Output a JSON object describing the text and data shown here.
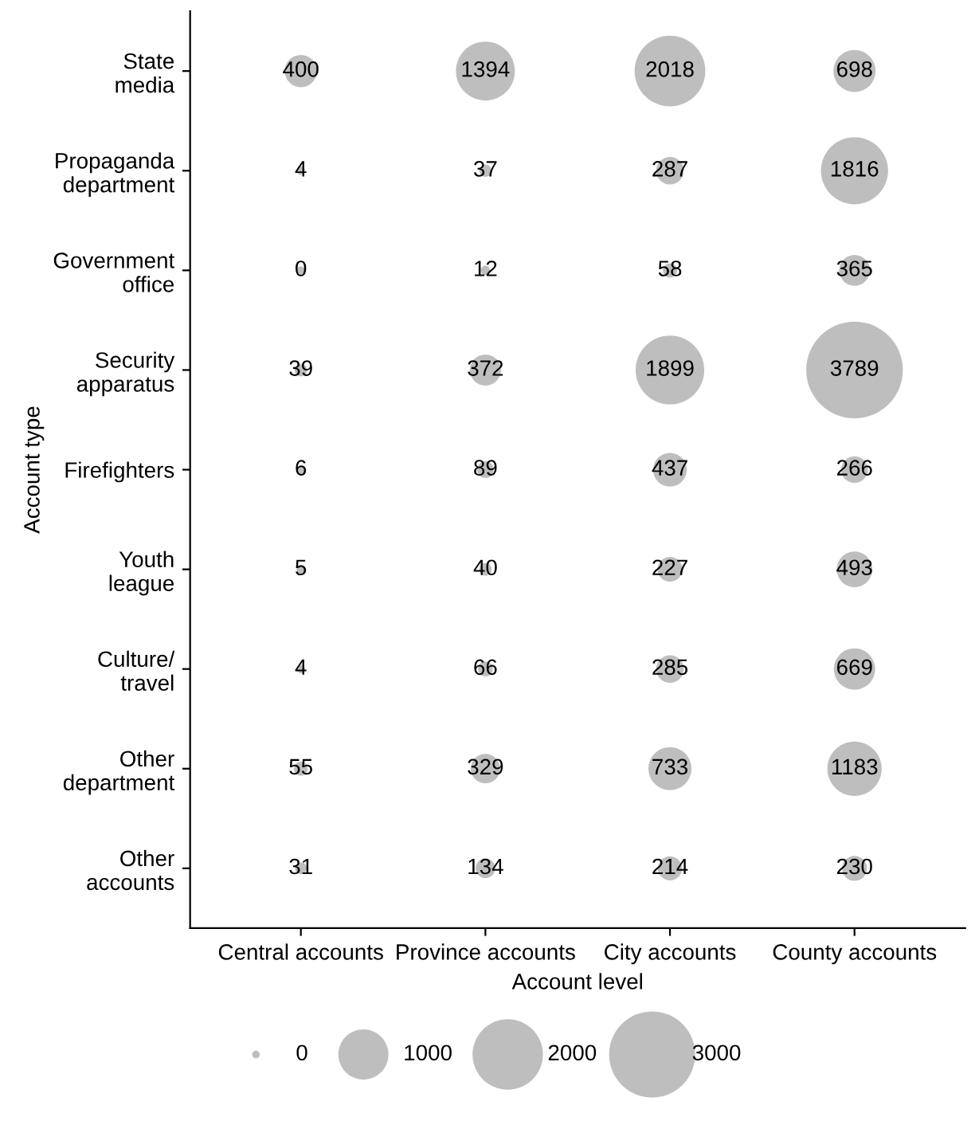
{
  "chart_data": {
    "type": "heatmap",
    "xlabel": "Account level",
    "ylabel": "Account type",
    "categories": [
      "Central accounts",
      "Province accounts",
      "City accounts",
      "County accounts"
    ],
    "y_categories": [
      "State\nmedia",
      "Propaganda\ndepartment",
      "Government\noffice",
      "Security\napparatus",
      "Firefighters",
      "Youth\nleague",
      "Culture/\ntravel",
      "Other\ndepartment",
      "Other\naccounts"
    ],
    "cells": [
      [
        400,
        1394,
        2018,
        698
      ],
      [
        4,
        37,
        287,
        1816
      ],
      [
        0,
        12,
        58,
        365
      ],
      [
        39,
        372,
        1899,
        3789
      ],
      [
        6,
        89,
        437,
        266
      ],
      [
        5,
        40,
        227,
        493
      ],
      [
        4,
        66,
        285,
        669
      ],
      [
        55,
        329,
        733,
        1183
      ],
      [
        31,
        134,
        214,
        230
      ]
    ],
    "color": "#bebebe",
    "data_labels": true,
    "annotations": [
      "0",
      "1000",
      "2000",
      "3000"
    ]
  }
}
